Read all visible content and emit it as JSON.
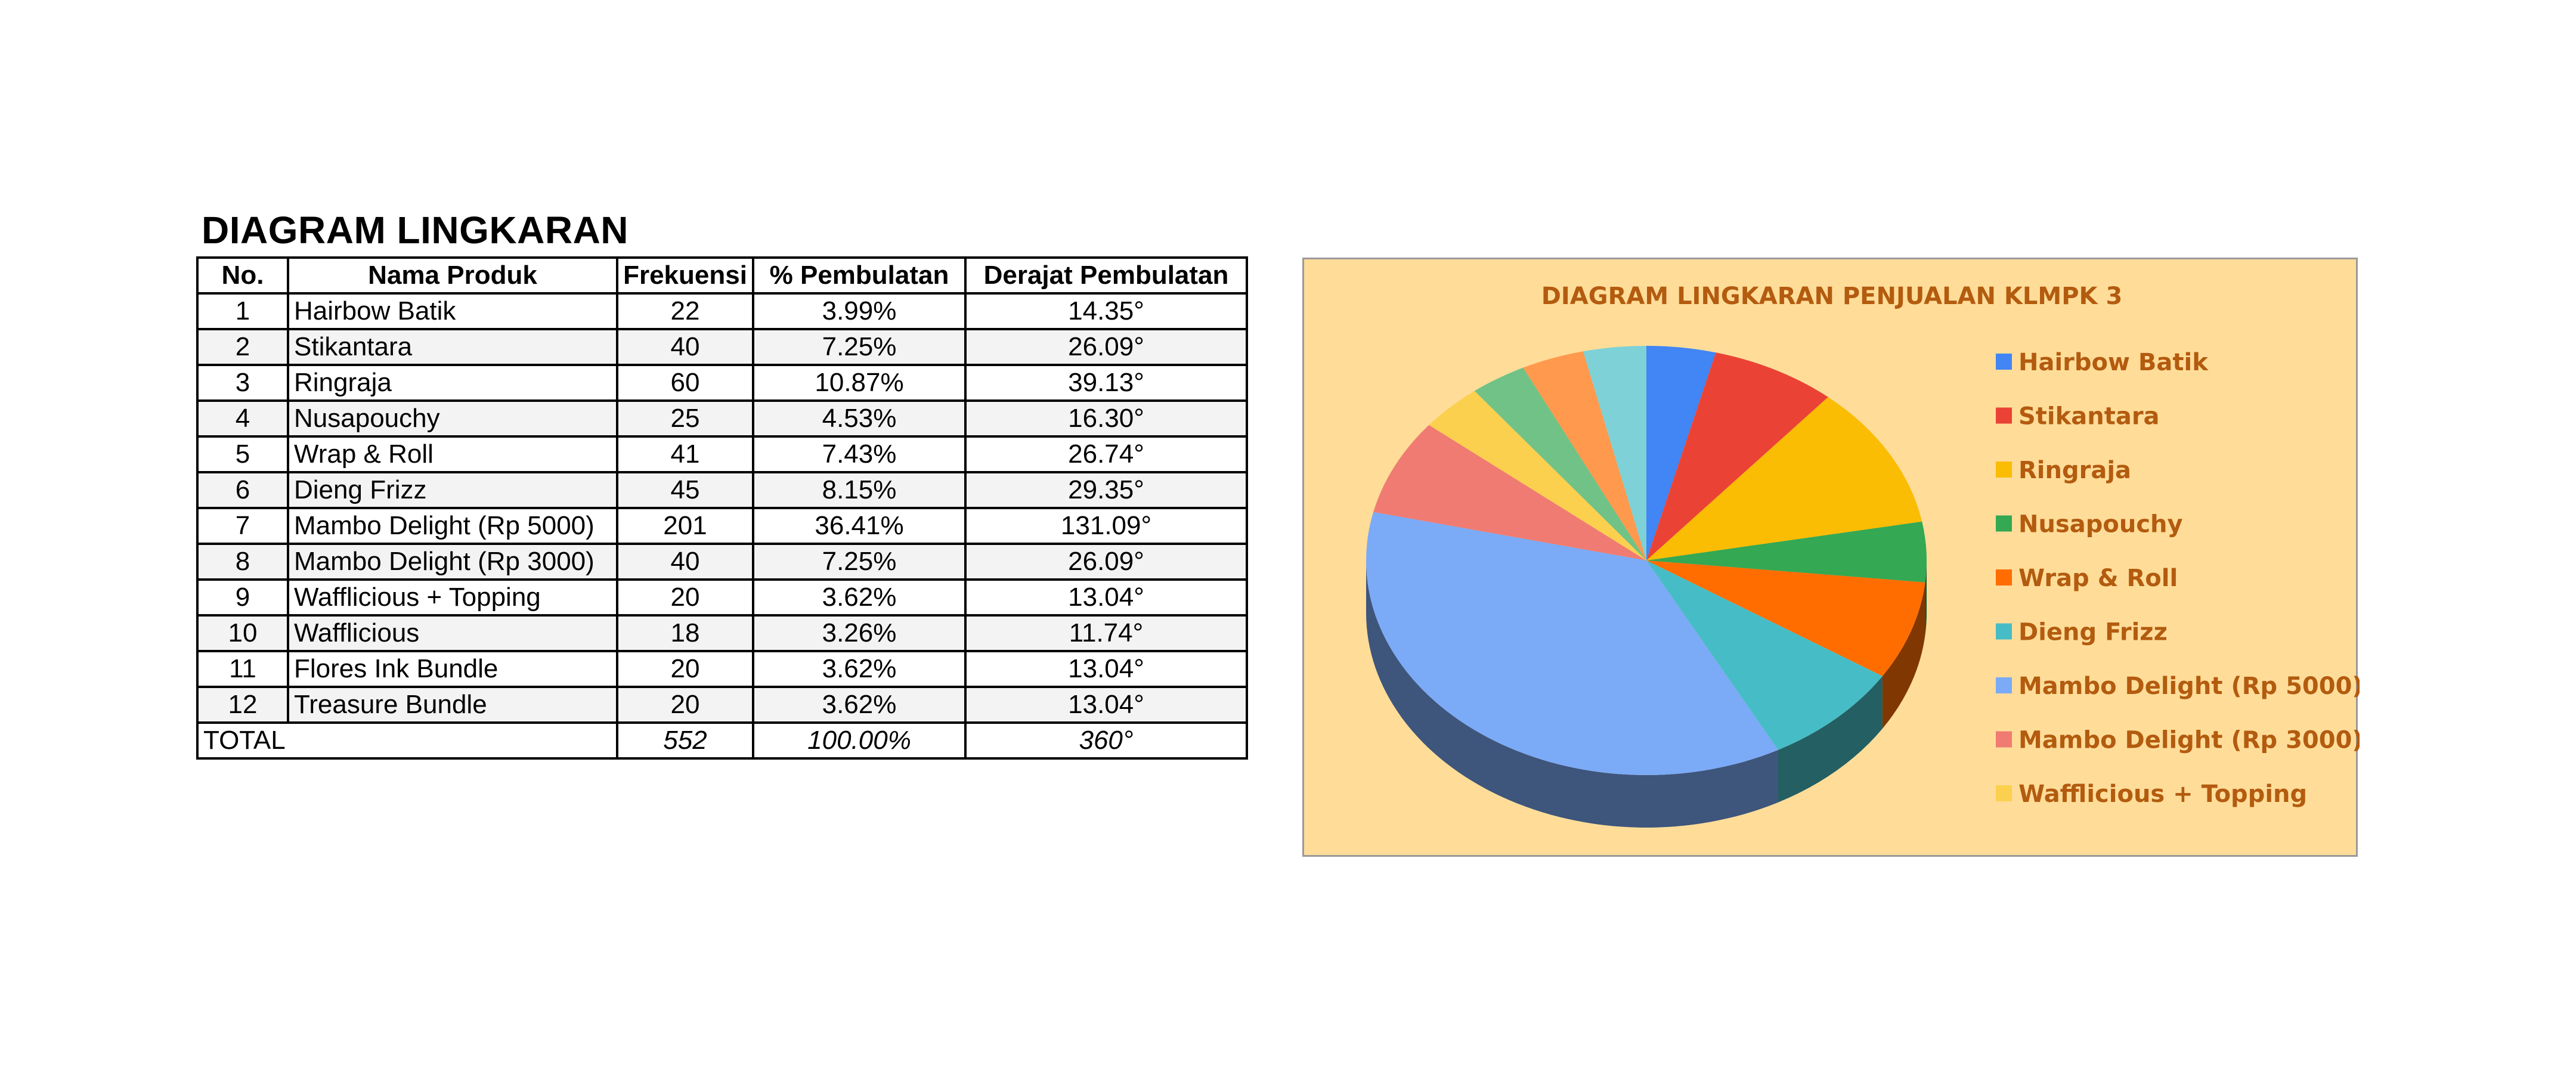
{
  "heading": "DIAGRAM LINGKARAN",
  "table": {
    "columns": [
      "No.",
      "Nama Produk",
      "Frekuensi",
      "% Pembulatan",
      "Derajat Pembulatan"
    ],
    "rows": [
      {
        "no": "1",
        "name": "Hairbow Batik",
        "freq": "22",
        "pct": "3.99%",
        "deg": "14.35°"
      },
      {
        "no": "2",
        "name": "Stikantara",
        "freq": "40",
        "pct": "7.25%",
        "deg": "26.09°"
      },
      {
        "no": "3",
        "name": "Ringraja",
        "freq": "60",
        "pct": "10.87%",
        "deg": "39.13°"
      },
      {
        "no": "4",
        "name": "Nusapouchy",
        "freq": "25",
        "pct": "4.53%",
        "deg": "16.30°"
      },
      {
        "no": "5",
        "name": "Wrap & Roll",
        "freq": "41",
        "pct": "7.43%",
        "deg": "26.74°"
      },
      {
        "no": "6",
        "name": "Dieng Frizz",
        "freq": "45",
        "pct": "8.15%",
        "deg": "29.35°"
      },
      {
        "no": "7",
        "name": "Mambo Delight (Rp 5000)",
        "freq": "201",
        "pct": "36.41%",
        "deg": "131.09°"
      },
      {
        "no": "8",
        "name": "Mambo Delight (Rp 3000)",
        "freq": "40",
        "pct": "7.25%",
        "deg": "26.09°"
      },
      {
        "no": "9",
        "name": "Wafflicious  + Topping",
        "freq": "20",
        "pct": "3.62%",
        "deg": "13.04°"
      },
      {
        "no": "10",
        "name": "Wafflicious",
        "freq": "18",
        "pct": "3.26%",
        "deg": "11.74°"
      },
      {
        "no": "11",
        "name": "Flores Ink Bundle",
        "freq": "20",
        "pct": "3.62%",
        "deg": "13.04°"
      },
      {
        "no": "12",
        "name": "Treasure Bundle",
        "freq": "20",
        "pct": "3.62%",
        "deg": "13.04°"
      }
    ],
    "total": {
      "label": "TOTAL",
      "freq": "552",
      "pct": "100.00%",
      "deg": "360°"
    }
  },
  "chart_data": {
    "type": "pie",
    "title": "DIAGRAM LINGKARAN PENJUALAN KLMPK 3",
    "categories": [
      "Hairbow Batik",
      "Stikantara",
      "Ringraja",
      "Nusapouchy",
      "Wrap & Roll",
      "Dieng Frizz",
      "Mambo Delight (Rp 5000)",
      "Mambo Delight (Rp 3000)",
      "Wafflicious  + Topping",
      "Wafflicious",
      "Flores Ink Bundle",
      "Treasure Bundle"
    ],
    "values": [
      22,
      40,
      60,
      25,
      41,
      45,
      201,
      40,
      20,
      18,
      20,
      20
    ],
    "colors": [
      "#4285f4",
      "#ea4335",
      "#fbbc04",
      "#34a853",
      "#ff6d01",
      "#46bdc6",
      "#7baaf7",
      "#f07b72",
      "#fcd04f",
      "#71c287",
      "#ff994d",
      "#7ed1d7"
    ],
    "legend_visible_count": 9,
    "legend_position": "right",
    "style": "3d",
    "background": "#ffdd99",
    "title_color": "#b35b0f"
  }
}
